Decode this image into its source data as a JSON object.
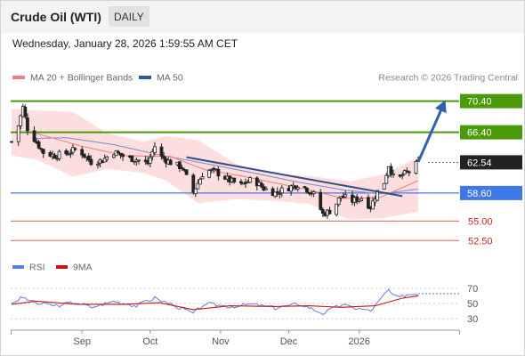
{
  "header": {
    "title": "Crude Oil (WTI)",
    "period": "DAILY",
    "datetime": "Wednesday, January 28, 2026 1:59:55 AM CET"
  },
  "legend": {
    "ma20": "MA 20 + Bollinger Bands",
    "ma50": "MA 50",
    "credit": "Research © 2026 Trading Central"
  },
  "rsi_legend": {
    "rsi": "RSI",
    "ma9": "9MA"
  },
  "colors": {
    "up": "#ffffff",
    "down": "#222222",
    "ma20": "#f08080",
    "ma50": "#8a8ec9",
    "bands": "#fbd8d8",
    "resistance": "#4a9a0a",
    "pivot": "#3f78e8",
    "support": "#e06060",
    "current": "#222222",
    "projection": "#2d62ad",
    "rsi": "#5b7fe0",
    "rsi_ma": "#cc1111"
  },
  "chart_data": [
    {
      "type": "candlestick",
      "title": "Crude Oil (WTI)",
      "ylim": [
        51.5,
        71.5
      ],
      "xlim": [
        "2025-08-01",
        "2026-02-14"
      ],
      "x_ticks": [
        {
          "date": "2025-09-01",
          "label": "Sep"
        },
        {
          "date": "2025-10-01",
          "label": "Oct"
        },
        {
          "date": "2025-11-01",
          "label": "Nov"
        },
        {
          "date": "2025-12-01",
          "label": "Dec"
        },
        {
          "date": "2026-01-01",
          "label": "2026"
        }
      ],
      "price_path": [
        [
          "2025-08-01",
          65.2
        ],
        [
          "2025-08-04",
          67.3
        ],
        [
          "2025-08-06",
          69.6
        ],
        [
          "2025-08-08",
          66.9
        ],
        [
          "2025-08-12",
          65.1
        ],
        [
          "2025-08-15",
          63.8
        ],
        [
          "2025-08-20",
          63.4
        ],
        [
          "2025-08-25",
          63.7
        ],
        [
          "2025-08-30",
          64.3
        ],
        [
          "2025-09-05",
          62.6
        ],
        [
          "2025-09-10",
          62.8
        ],
        [
          "2025-09-15",
          63.9
        ],
        [
          "2025-09-20",
          63.2
        ],
        [
          "2025-09-25",
          62.9
        ],
        [
          "2025-09-30",
          62.4
        ],
        [
          "2025-10-03",
          64.6
        ],
        [
          "2025-10-06",
          63.2
        ],
        [
          "2025-10-10",
          62.5
        ],
        [
          "2025-10-15",
          61.9
        ],
        [
          "2025-10-20",
          58.7
        ],
        [
          "2025-10-25",
          61.6
        ],
        [
          "2025-10-30",
          61.3
        ],
        [
          "2025-11-05",
          60.2
        ],
        [
          "2025-11-10",
          59.6
        ],
        [
          "2025-11-15",
          60.4
        ],
        [
          "2025-11-20",
          59.2
        ],
        [
          "2025-11-25",
          58.6
        ],
        [
          "2025-12-01",
          59.3
        ],
        [
          "2025-12-06",
          59.8
        ],
        [
          "2025-12-12",
          58.4
        ],
        [
          "2025-12-16",
          55.9
        ],
        [
          "2025-12-20",
          56.4
        ],
        [
          "2025-12-24",
          58.2
        ],
        [
          "2025-12-29",
          57.6
        ],
        [
          "2026-01-02",
          58.0
        ],
        [
          "2026-01-06",
          56.8
        ],
        [
          "2026-01-09",
          58.8
        ],
        [
          "2026-01-12",
          60.0
        ],
        [
          "2026-01-14",
          62.2
        ],
        [
          "2026-01-17",
          59.9
        ],
        [
          "2026-01-20",
          60.9
        ],
        [
          "2026-01-23",
          61.4
        ],
        [
          "2026-01-27",
          62.54
        ]
      ],
      "ma20_path": [
        [
          "2025-08-10",
          66.4
        ],
        [
          "2025-09-01",
          64.6
        ],
        [
          "2025-09-20",
          63.4
        ],
        [
          "2025-10-10",
          63.3
        ],
        [
          "2025-10-25",
          61.6
        ],
        [
          "2025-11-10",
          60.8
        ],
        [
          "2025-11-25",
          59.9
        ],
        [
          "2025-12-10",
          59.0
        ],
        [
          "2025-12-25",
          57.9
        ],
        [
          "2026-01-10",
          58.0
        ],
        [
          "2026-01-27",
          60.2
        ]
      ],
      "ma50_path": [
        [
          "2025-08-10",
          65.6
        ],
        [
          "2025-08-25",
          65.7
        ],
        [
          "2025-09-15",
          64.8
        ],
        [
          "2025-10-05",
          63.5
        ],
        [
          "2025-10-25",
          62.4
        ],
        [
          "2025-11-15",
          61.2
        ],
        [
          "2025-12-05",
          60.0
        ],
        [
          "2025-12-25",
          59.0
        ],
        [
          "2026-01-10",
          58.5
        ],
        [
          "2026-01-27",
          59.1
        ]
      ],
      "band_upper": [
        [
          "2025-08-01",
          69.4
        ],
        [
          "2025-08-12",
          69.2
        ],
        [
          "2025-08-28",
          69.0
        ],
        [
          "2025-09-12",
          66.3
        ],
        [
          "2025-09-28",
          65.2
        ],
        [
          "2025-10-08",
          65.9
        ],
        [
          "2025-10-22",
          65.4
        ],
        [
          "2025-11-08",
          62.3
        ],
        [
          "2025-11-25",
          61.0
        ],
        [
          "2025-12-10",
          60.8
        ],
        [
          "2025-12-28",
          60.1
        ],
        [
          "2026-01-12",
          61.0
        ],
        [
          "2026-01-27",
          63.2
        ]
      ],
      "band_lower": [
        [
          "2025-08-01",
          63.4
        ],
        [
          "2025-08-12",
          62.9
        ],
        [
          "2025-08-28",
          60.7
        ],
        [
          "2025-09-12",
          61.7
        ],
        [
          "2025-09-28",
          61.2
        ],
        [
          "2025-10-08",
          60.2
        ],
        [
          "2025-10-22",
          57.3
        ],
        [
          "2025-11-08",
          57.8
        ],
        [
          "2025-11-25",
          57.6
        ],
        [
          "2025-12-10",
          57.2
        ],
        [
          "2025-12-28",
          55.2
        ],
        [
          "2026-01-12",
          55.4
        ],
        [
          "2026-01-27",
          56.2
        ]
      ],
      "trendline": [
        [
          "2025-10-17",
          63.2
        ],
        [
          "2026-01-20",
          58.2
        ]
      ],
      "projection": [
        [
          "2026-01-27",
          62.6
        ],
        [
          "2026-02-07",
          69.9
        ]
      ],
      "levels": [
        {
          "value": 70.4,
          "label": "70.40",
          "kind": "resistance"
        },
        {
          "value": 66.4,
          "label": "66.40",
          "kind": "resistance"
        },
        {
          "value": 62.54,
          "label": "62.54",
          "kind": "current"
        },
        {
          "value": 58.6,
          "label": "58.60",
          "kind": "pivot"
        },
        {
          "value": 55.0,
          "label": "55.00",
          "kind": "support"
        },
        {
          "value": 52.5,
          "label": "52.50",
          "kind": "support"
        }
      ]
    },
    {
      "type": "line",
      "title": "RSI",
      "ylim": [
        22,
        78
      ],
      "y_ticks": [
        70,
        50,
        30
      ],
      "rsi": [
        [
          "2025-08-01",
          51
        ],
        [
          "2025-08-06",
          58
        ],
        [
          "2025-08-12",
          50
        ],
        [
          "2025-08-20",
          47
        ],
        [
          "2025-08-30",
          52
        ],
        [
          "2025-09-05",
          45
        ],
        [
          "2025-09-15",
          53
        ],
        [
          "2025-09-25",
          47
        ],
        [
          "2025-10-03",
          57
        ],
        [
          "2025-10-12",
          47
        ],
        [
          "2025-10-20",
          37
        ],
        [
          "2025-10-25",
          50
        ],
        [
          "2025-11-05",
          46
        ],
        [
          "2025-11-15",
          49
        ],
        [
          "2025-11-25",
          44
        ],
        [
          "2025-12-06",
          50
        ],
        [
          "2025-12-16",
          37
        ],
        [
          "2025-12-24",
          48
        ],
        [
          "2026-01-06",
          40
        ],
        [
          "2026-01-14",
          68
        ],
        [
          "2026-01-17",
          55
        ],
        [
          "2026-01-22",
          62
        ],
        [
          "2026-01-27",
          63
        ]
      ],
      "rsi_ma9": [
        [
          "2025-08-01",
          49
        ],
        [
          "2025-08-12",
          53
        ],
        [
          "2025-08-30",
          49
        ],
        [
          "2025-09-20",
          49
        ],
        [
          "2025-10-05",
          51
        ],
        [
          "2025-10-20",
          42
        ],
        [
          "2025-11-05",
          47
        ],
        [
          "2025-11-25",
          46
        ],
        [
          "2025-12-10",
          47
        ],
        [
          "2025-12-24",
          45
        ],
        [
          "2026-01-08",
          47
        ],
        [
          "2026-01-20",
          57
        ],
        [
          "2026-01-27",
          60
        ]
      ],
      "rsi_projection": 63
    }
  ]
}
